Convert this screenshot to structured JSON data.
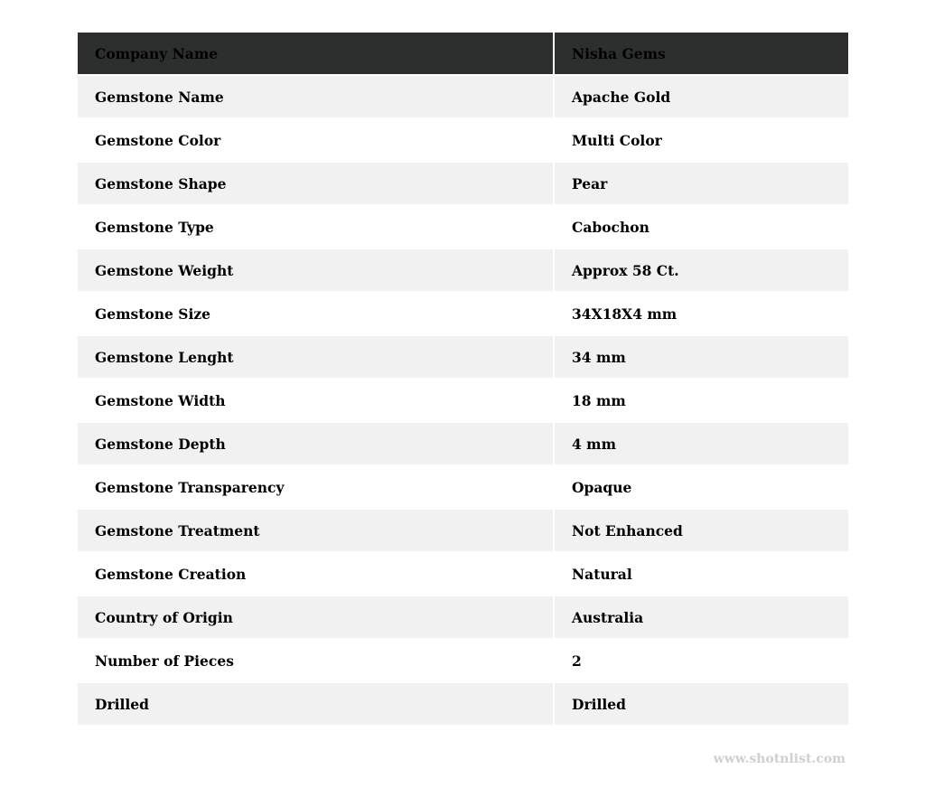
{
  "header": {
    "label": "Company Name",
    "value": "Nisha Gems"
  },
  "rows": [
    {
      "label": "Gemstone Name",
      "value": "Apache Gold"
    },
    {
      "label": "Gemstone Color",
      "value": "Multi Color"
    },
    {
      "label": "Gemstone Shape",
      "value": "Pear"
    },
    {
      "label": "Gemstone Type",
      "value": "Cabochon"
    },
    {
      "label": "Gemstone Weight",
      "value": "Approx 58 Ct."
    },
    {
      "label": "Gemstone Size",
      "value": "34X18X4 mm"
    },
    {
      "label": "Gemstone Lenght",
      "value": "34 mm"
    },
    {
      "label": "Gemstone Width",
      "value": "18 mm"
    },
    {
      "label": "Gemstone Depth",
      "value": "4 mm"
    },
    {
      "label": "Gemstone Transparency",
      "value": "Opaque"
    },
    {
      "label": "Gemstone Treatment",
      "value": "Not Enhanced"
    },
    {
      "label": "Gemstone Creation",
      "value": "Natural"
    },
    {
      "label": "Country of Origin",
      "value": "Australia"
    },
    {
      "label": "Number of Pieces",
      "value": "2"
    },
    {
      "label": "Drilled",
      "value": "Drilled"
    }
  ],
  "watermark": "www.shotnlist.com",
  "colors": {
    "header_bg": "#2d2f2e",
    "stripe_bg": "#f1f1f1",
    "watermark": "#cfcfcf"
  }
}
